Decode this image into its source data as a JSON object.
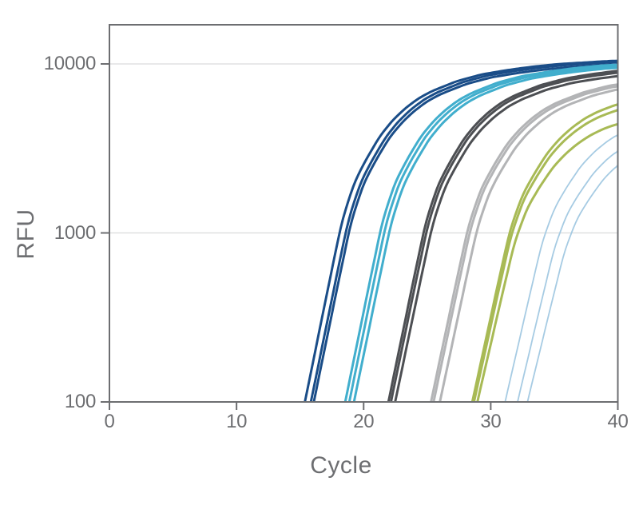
{
  "chart_data": {
    "type": "line",
    "title": "",
    "xlabel": "Cycle",
    "ylabel": "RFU",
    "yscale": "log",
    "xlim": [
      0,
      40
    ],
    "ylim": [
      100,
      17000
    ],
    "x_ticks": [
      "0",
      "10",
      "20",
      "30",
      "40"
    ],
    "x_tick_values": [
      0,
      10,
      20,
      30,
      40
    ],
    "y_ticks": [
      "100",
      "1000",
      "10000"
    ],
    "y_tick_values": [
      100,
      1000,
      10000
    ],
    "gridlines_y": [
      1000,
      10000
    ],
    "legend": "none",
    "axis_color": "#6d6e71",
    "grid_color": "#dadbdc",
    "background_color": "#ffffff",
    "curve_model": "sigmoid amplification: log10(RFU) = 2 + shape(cycle - ct100) * sqrt(log10(plateau/100) / 2.035), clipped to plot area",
    "shape": {
      "t": [
        0,
        1,
        2,
        3,
        4,
        5,
        6,
        7,
        8,
        9,
        10,
        12,
        14,
        16,
        18,
        20,
        24,
        28,
        34,
        40
      ],
      "v": [
        0,
        0.37,
        0.74,
        1.1,
        1.32,
        1.46,
        1.585,
        1.675,
        1.745,
        1.8,
        1.84,
        1.9,
        1.94,
        1.965,
        1.985,
        2.0,
        2.018,
        2.027,
        2.033,
        2.035
      ]
    },
    "groups": [
      {
        "name": "navy-blue",
        "color": "#1a4d88",
        "stroke_width": 3,
        "curves": [
          {
            "ct100": 15.38,
            "plateau": 10800
          },
          {
            "ct100": 15.85,
            "plateau": 10500
          },
          {
            "ct100": 16.08,
            "plateau": 9900
          }
        ]
      },
      {
        "name": "cyan",
        "color": "#41aecd",
        "stroke_width": 3,
        "curves": [
          {
            "ct100": 18.55,
            "plateau": 10300
          },
          {
            "ct100": 18.87,
            "plateau": 10000
          },
          {
            "ct100": 19.24,
            "plateau": 9600
          }
        ]
      },
      {
        "name": "dark-gray",
        "color": "#4d4f53",
        "stroke_width": 3,
        "curves": [
          {
            "ct100": 21.95,
            "plateau": 9600
          },
          {
            "ct100": 22.15,
            "plateau": 9200
          },
          {
            "ct100": 22.48,
            "plateau": 8500
          }
        ]
      },
      {
        "name": "light-gray",
        "color": "#b3b4b6",
        "stroke_width": 3,
        "curves": [
          {
            "ct100": 25.3,
            "plateau": 7800
          },
          {
            "ct100": 25.5,
            "plateau": 7500
          },
          {
            "ct100": 26.0,
            "plateau": 7100
          }
        ]
      },
      {
        "name": "olive-green",
        "color": "#a8ba55",
        "stroke_width": 3,
        "curves": [
          {
            "ct100": 28.55,
            "plateau": 6050
          },
          {
            "ct100": 28.68,
            "plateau": 5250
          },
          {
            "ct100": 28.95,
            "plateau": 3750
          }
        ]
      },
      {
        "name": "pale-blue",
        "color": "#a6cbe3",
        "stroke_width": 1.8,
        "curves": [
          {
            "ct100": 31.13,
            "plateau": 3860
          },
          {
            "ct100": 32.11,
            "plateau": 3100
          },
          {
            "ct100": 32.89,
            "plateau": 2590
          }
        ]
      }
    ]
  }
}
